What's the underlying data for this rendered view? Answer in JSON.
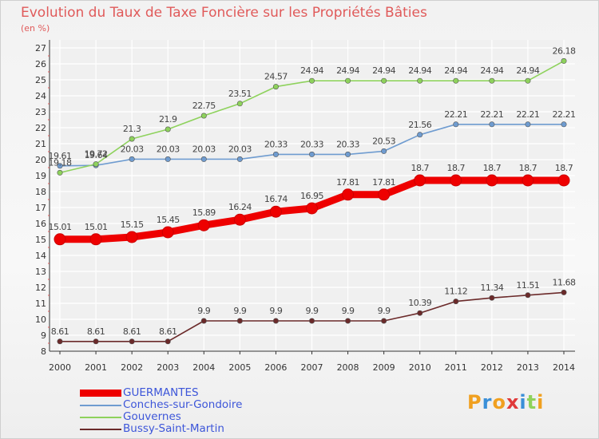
{
  "title": "Evolution du Taux de Taxe Foncière sur les Propriétés Bâties",
  "unit_label": "(en %)",
  "logo_text": "Proxiti",
  "colors": {
    "background": "#f4f4f4",
    "grid": "#ffffff",
    "axis": "#333333",
    "title": "#e05a5a",
    "legend_text": "#3d56d9"
  },
  "chart_data": {
    "type": "line",
    "x": [
      "2000",
      "2001",
      "2002",
      "2003",
      "2004",
      "2005",
      "2006",
      "2007",
      "2008",
      "2009",
      "2010",
      "2011",
      "2012",
      "2013",
      "2014"
    ],
    "ylim": [
      8,
      27
    ],
    "yticks": [
      8,
      9,
      10,
      11,
      12,
      13,
      14,
      15,
      16,
      17,
      18,
      19,
      20,
      21,
      22,
      23,
      24,
      25,
      26,
      27
    ],
    "grid": true,
    "legend_position": "bottom-left",
    "series": [
      {
        "name": "GUERMANTES",
        "color": "#ee0000",
        "values": [
          15.01,
          15.01,
          15.15,
          15.45,
          15.89,
          16.24,
          16.74,
          16.95,
          17.81,
          17.81,
          18.7,
          18.7,
          18.7,
          18.7,
          18.7
        ],
        "labels": [
          "15.01",
          "15.01",
          "15.15",
          "15.45",
          "15.89",
          "16.24",
          "16.74",
          "16.95",
          "17.81",
          "17.81",
          "18.7",
          "18.7",
          "18.7",
          "18.7",
          "18.7"
        ]
      },
      {
        "name": "Conches-sur-Gondoire",
        "color": "#6f9cd0",
        "values": [
          19.61,
          19.64,
          20.03,
          20.03,
          20.03,
          20.03,
          20.33,
          20.33,
          20.33,
          20.53,
          21.56,
          22.21,
          22.21,
          22.21,
          22.21
        ],
        "labels": [
          "19.61",
          "19.64",
          "20.03",
          "20.03",
          "20.03",
          "20.03",
          "20.33",
          "20.33",
          "20.33",
          "20.53",
          "21.56",
          "22.21",
          "22.21",
          "22.21",
          "22.21"
        ]
      },
      {
        "name": "Gouvernes",
        "color": "#8ed25c",
        "values": [
          19.18,
          19.72,
          21.3,
          21.9,
          22.75,
          23.51,
          24.57,
          24.94,
          24.94,
          24.94,
          24.94,
          24.94,
          24.94,
          24.94,
          26.18
        ],
        "labels": [
          "19.18",
          "19.72",
          "21.3",
          "21.9",
          "22.75",
          "23.51",
          "24.57",
          "24.94",
          "24.94",
          "24.94",
          "24.94",
          "24.94",
          "24.94",
          "24.94",
          "26.18"
        ]
      },
      {
        "name": "Bussy-Saint-Martin",
        "color": "#6b2a2a",
        "values": [
          8.61,
          8.61,
          8.61,
          8.61,
          9.9,
          9.9,
          9.9,
          9.9,
          9.9,
          9.9,
          10.39,
          11.12,
          11.34,
          11.51,
          11.68
        ],
        "labels": [
          "8.61",
          "8.61",
          "8.61",
          "8.61",
          "9.9",
          "9.9",
          "9.9",
          "9.9",
          "9.9",
          "9.9",
          "10.39",
          "11.12",
          "11.34",
          "11.51",
          "11.68"
        ]
      }
    ]
  }
}
